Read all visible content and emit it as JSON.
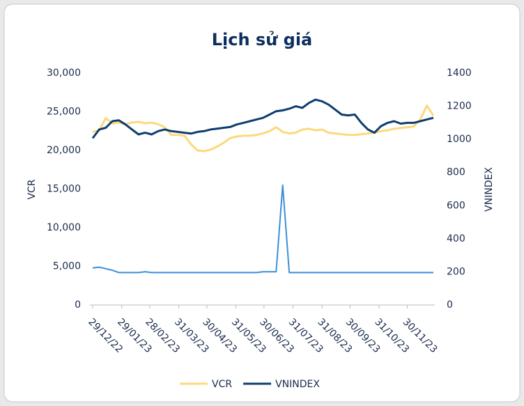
{
  "chart_data": {
    "type": "line",
    "title": "Lịch sử giá",
    "y_label": "VCR",
    "y2_label": "VNINDEX",
    "x": [
      "29/12/22",
      "05/01/23",
      "12/01/23",
      "19/01/23",
      "26/01/23",
      "02/02/23",
      "09/02/23",
      "16/02/23",
      "23/02/23",
      "02/03/23",
      "09/03/23",
      "16/03/23",
      "23/03/23",
      "30/03/23",
      "06/04/23",
      "13/04/23",
      "20/04/23",
      "27/04/23",
      "04/05/23",
      "11/05/23",
      "18/05/23",
      "25/05/23",
      "01/06/23",
      "08/06/23",
      "15/06/23",
      "22/06/23",
      "29/06/23",
      "06/07/23",
      "13/07/23",
      "20/07/23",
      "27/07/23",
      "03/08/23",
      "10/08/23",
      "17/08/23",
      "24/08/23",
      "31/08/23",
      "07/09/23",
      "14/09/23",
      "21/09/23",
      "28/09/23",
      "05/10/23",
      "12/10/23",
      "19/10/23",
      "26/10/23",
      "02/11/23",
      "09/11/23",
      "16/11/23",
      "23/11/23",
      "30/11/23",
      "07/12/23",
      "14/12/23",
      "21/12/23",
      "28/12/23"
    ],
    "xlim": [
      "29/12/22",
      "28/12/23"
    ],
    "xticks": [
      "29/12/22",
      "29/01/23",
      "28/02/23",
      "31/03/23",
      "30/04/23",
      "31/05/23",
      "30/06/23",
      "31/07/23",
      "31/08/23",
      "30/09/23",
      "31/10/23",
      "30/11/23"
    ],
    "ylim": [
      0,
      30000
    ],
    "yticks": [
      0,
      {
        "value": 5000,
        "label": "5,000"
      },
      {
        "value": 10000,
        "label": "10,000"
      },
      {
        "value": 15000,
        "label": "15,000"
      },
      {
        "value": 20000,
        "label": "20,000"
      },
      {
        "value": 25000,
        "label": "25,000"
      },
      {
        "value": 30000,
        "label": "30,000"
      }
    ],
    "y2lim": [
      0,
      1400
    ],
    "y2ticks": [
      0,
      200,
      400,
      600,
      800,
      1000,
      1200,
      1400
    ],
    "legend": "bottom",
    "series": [
      {
        "name": "VCR",
        "color": "#fcd97a",
        "values": [
          22400,
          22600,
          24200,
          23500,
          23600,
          23400,
          23600,
          23700,
          23500,
          23600,
          23400,
          23000,
          22000,
          22000,
          21900,
          20800,
          20000,
          19900,
          20100,
          20500,
          21000,
          21600,
          21800,
          21900,
          21900,
          22000,
          22200,
          22500,
          23000,
          22400,
          22200,
          22300,
          22700,
          22800,
          22600,
          22700,
          22300,
          22200,
          22100,
          22000,
          22000,
          22100,
          22200,
          22300,
          22500,
          22600,
          22800,
          22900,
          23000,
          23100,
          24000,
          25800,
          24500
        ]
      },
      {
        "name": "VNINDEX",
        "color": "#0d3d6e",
        "axis": "y2",
        "values": [
          1007,
          1060,
          1070,
          1110,
          1115,
          1090,
          1060,
          1030,
          1040,
          1030,
          1050,
          1060,
          1050,
          1045,
          1040,
          1035,
          1045,
          1050,
          1060,
          1065,
          1070,
          1075,
          1090,
          1100,
          1110,
          1120,
          1130,
          1150,
          1170,
          1175,
          1185,
          1200,
          1190,
          1220,
          1240,
          1230,
          1210,
          1180,
          1150,
          1145,
          1150,
          1100,
          1060,
          1040,
          1080,
          1100,
          1110,
          1095,
          1100,
          1100,
          1110,
          1120,
          1130
        ]
      },
      {
        "color": "#3a8fd9",
        "values": [
          4800,
          4900,
          4700,
          4500,
          4200,
          4200,
          4200,
          4200,
          4300,
          4200,
          4200,
          4200,
          4200,
          4200,
          4200,
          4200,
          4200,
          4200,
          4200,
          4200,
          4200,
          4200,
          4200,
          4200,
          4200,
          4200,
          4300,
          4300,
          4300,
          15500,
          4200,
          4200,
          4200,
          4200,
          4200,
          4200,
          4200,
          4200,
          4200,
          4200,
          4200,
          4200,
          4200,
          4200,
          4200,
          4200,
          4200,
          4200,
          4200,
          4200,
          4200,
          4200,
          4200
        ]
      }
    ]
  }
}
